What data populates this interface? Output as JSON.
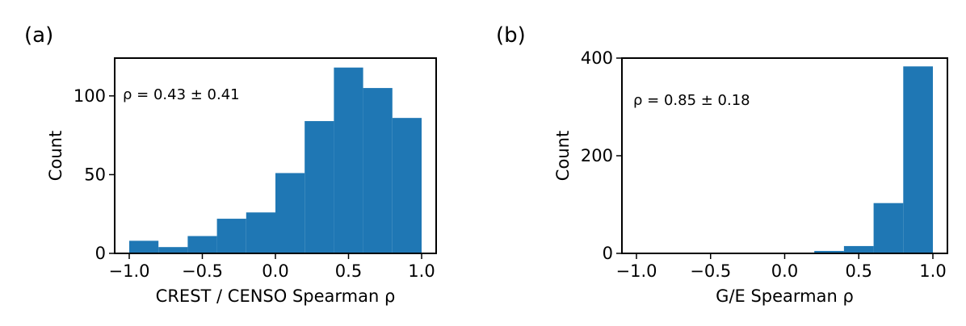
{
  "chart_data": [
    {
      "type": "bar",
      "panel_label": "(a)",
      "annotation": "ρ = 0.43 ± 0.41",
      "xlabel": "CREST / CENSO Spearman ρ",
      "ylabel": "Count",
      "xlim": [
        -1.0,
        1.0
      ],
      "ylim": [
        0,
        124
      ],
      "xticks": [
        {
          "value": -1.0,
          "label": "−1.0"
        },
        {
          "value": -0.5,
          "label": "−0.5"
        },
        {
          "value": 0.0,
          "label": "0.0"
        },
        {
          "value": 0.5,
          "label": "0.5"
        },
        {
          "value": 1.0,
          "label": "1.0"
        }
      ],
      "yticks": [
        {
          "value": 0,
          "label": "0"
        },
        {
          "value": 50,
          "label": "50"
        },
        {
          "value": 100,
          "label": "100"
        }
      ],
      "bin_edges": [
        -1.0,
        -0.8,
        -0.6,
        -0.4,
        -0.2,
        0.0,
        0.2,
        0.4,
        0.6,
        0.8,
        1.0
      ],
      "values": [
        8,
        4,
        11,
        22,
        26,
        51,
        84,
        118,
        105,
        86
      ],
      "color": "#1f77b4"
    },
    {
      "type": "bar",
      "panel_label": "(b)",
      "annotation": "ρ = 0.85 ± 0.18",
      "xlabel": "G/E Spearman ρ",
      "ylabel": "Count",
      "xlim": [
        -1.0,
        1.0
      ],
      "ylim": [
        0,
        400
      ],
      "xticks": [
        {
          "value": -1.0,
          "label": "−1.0"
        },
        {
          "value": -0.5,
          "label": "−0.5"
        },
        {
          "value": 0.0,
          "label": "0.0"
        },
        {
          "value": 0.5,
          "label": "0.5"
        },
        {
          "value": 1.0,
          "label": "1.0"
        }
      ],
      "yticks": [
        {
          "value": 0,
          "label": "0"
        },
        {
          "value": 200,
          "label": "200"
        },
        {
          "value": 400,
          "label": "400"
        }
      ],
      "bin_edges": [
        -1.0,
        -0.8,
        -0.6,
        -0.4,
        -0.2,
        0.0,
        0.2,
        0.4,
        0.6,
        0.8,
        1.0
      ],
      "values": [
        0,
        0,
        0,
        0,
        0,
        0,
        5,
        15,
        103,
        383
      ],
      "color": "#1f77b4"
    }
  ]
}
